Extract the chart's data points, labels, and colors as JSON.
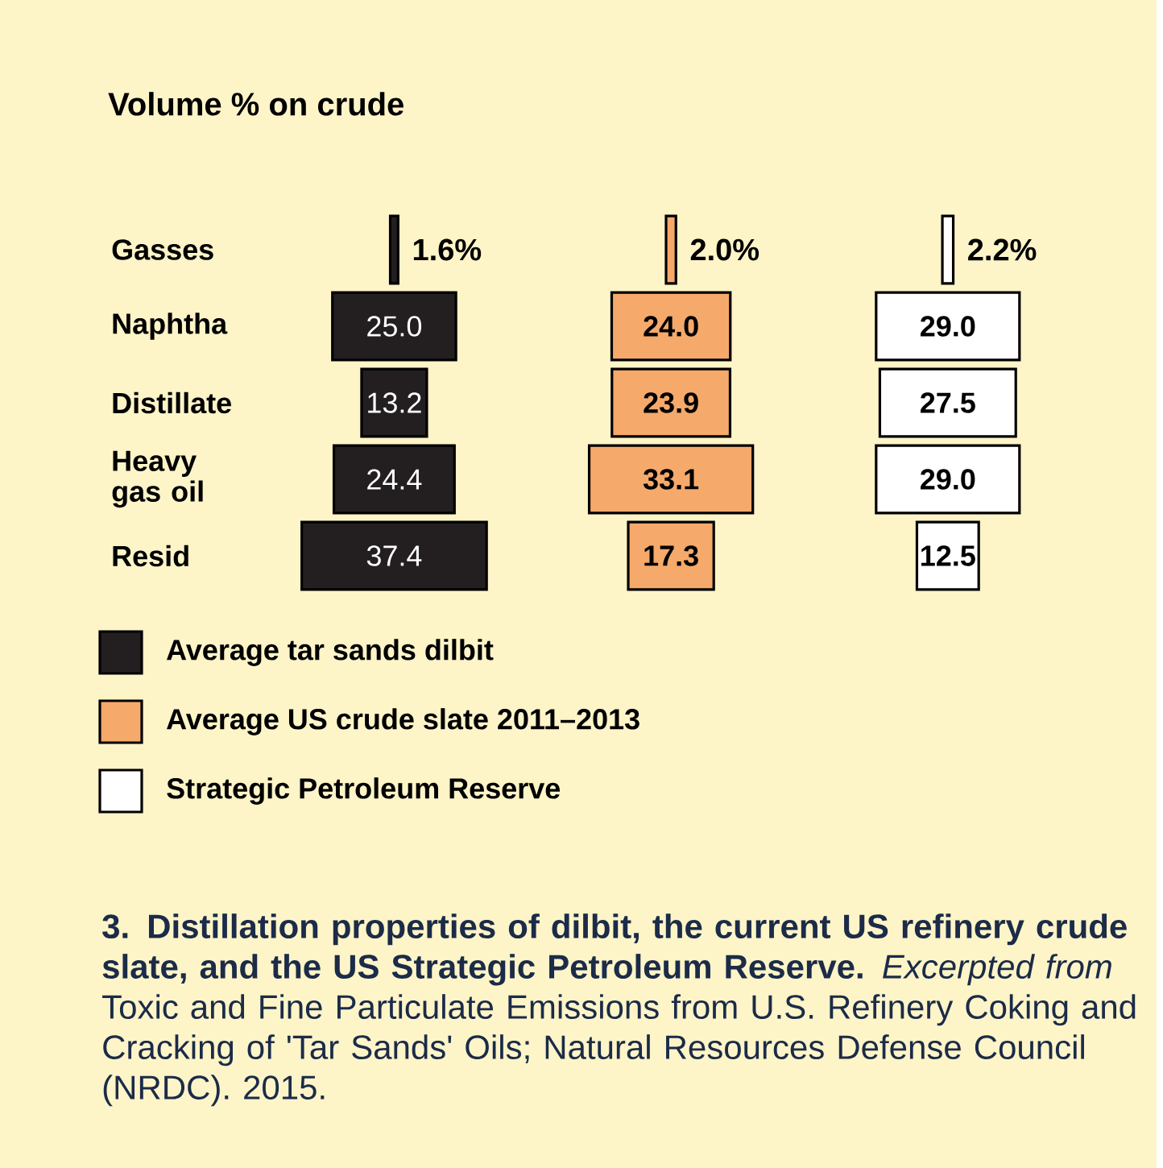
{
  "chart_data": {
    "type": "other",
    "title": "Volume % on crude",
    "categories": [
      "Gasses",
      "Naphtha",
      "Distillate",
      "Heavy gas oil",
      "Resid"
    ],
    "series": [
      {
        "name": "Average tar sands dilbit",
        "color": "#231f20",
        "values": [
          1.6,
          25.0,
          13.2,
          24.4,
          37.4
        ],
        "value_labels": [
          "1.6%",
          "25.0",
          "13.2",
          "24.4",
          "37.4"
        ]
      },
      {
        "name": "Average US crude slate 2011–2013",
        "color": "#f5a96b",
        "values": [
          2.0,
          24.0,
          23.9,
          33.1,
          17.3
        ],
        "value_labels": [
          "2.0%",
          "24.0",
          "23.9",
          "33.1",
          "17.3"
        ]
      },
      {
        "name": "Strategic Petroleum Reserve",
        "color": "#ffffff",
        "values": [
          2.2,
          29.0,
          27.5,
          29.0,
          12.5
        ],
        "value_labels": [
          "2.2%",
          "29.0",
          "27.5",
          "29.0",
          "12.5"
        ]
      }
    ],
    "legend": "bottom",
    "annotations": [
      "**3. Distillation properties of dilbit, the current US refinery crude slate, and the US Strategic Petroleum Reserve.** *Excerpted from* Toxic and Fine Particulate Emissions from U.S. Refinery Coking and Cracking of 'Tar Sands' Oils; Natural Resources Defense Council (NRDC). 2015."
    ]
  }
}
